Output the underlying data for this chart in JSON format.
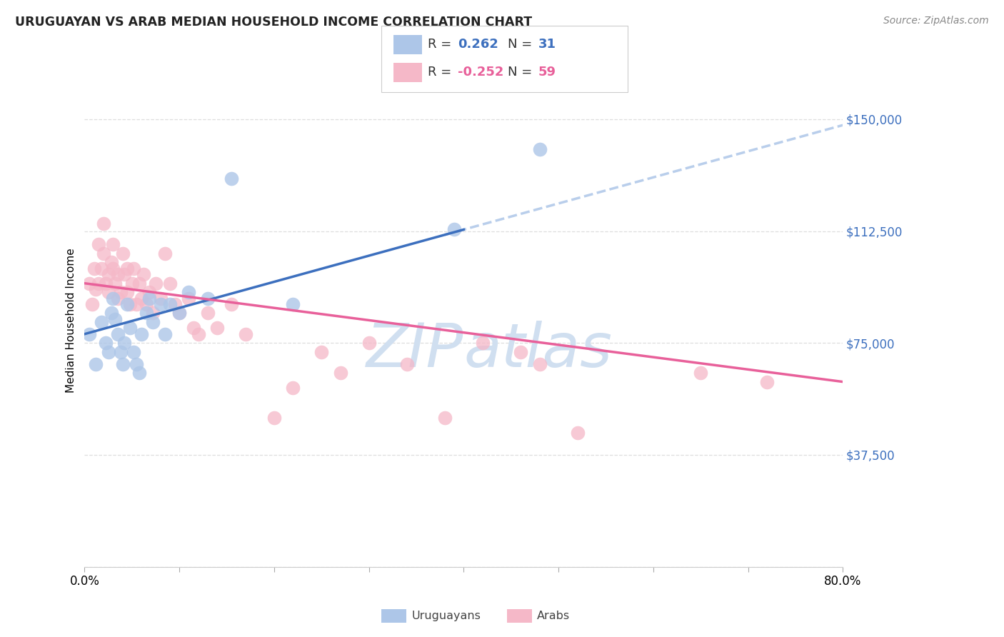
{
  "title": "URUGUAYAN VS ARAB MEDIAN HOUSEHOLD INCOME CORRELATION CHART",
  "source": "Source: ZipAtlas.com",
  "ylabel": "Median Household Income",
  "yticks": [
    0,
    37500,
    75000,
    112500,
    150000
  ],
  "ytick_labels": [
    "",
    "$37,500",
    "$75,000",
    "$112,500",
    "$150,000"
  ],
  "ymax": 165000,
  "ymin": 15000,
  "xmin": 0.0,
  "xmax": 0.8,
  "xtick_left": "0.0%",
  "xtick_right": "80.0%",
  "legend_r_uruguayan": "0.262",
  "legend_n_uruguayan": "31",
  "legend_r_arab": "-0.252",
  "legend_n_arab": "59",
  "uruguayan_color": "#adc6e8",
  "arab_color": "#f5b8c8",
  "uruguayan_line_color": "#3c6fbe",
  "arab_line_color": "#e8609a",
  "dashed_line_color": "#adc6e8",
  "watermark_color": "#d0dff0",
  "background_color": "#ffffff",
  "grid_color": "#dedede",
  "uruguayan_x": [
    0.005,
    0.012,
    0.018,
    0.022,
    0.025,
    0.028,
    0.03,
    0.032,
    0.035,
    0.038,
    0.04,
    0.042,
    0.045,
    0.048,
    0.052,
    0.055,
    0.058,
    0.06,
    0.065,
    0.068,
    0.072,
    0.08,
    0.085,
    0.09,
    0.1,
    0.11,
    0.13,
    0.155,
    0.22,
    0.39,
    0.48
  ],
  "uruguayan_y": [
    78000,
    68000,
    82000,
    75000,
    72000,
    85000,
    90000,
    83000,
    78000,
    72000,
    68000,
    75000,
    88000,
    80000,
    72000,
    68000,
    65000,
    78000,
    85000,
    90000,
    82000,
    88000,
    78000,
    88000,
    85000,
    92000,
    90000,
    130000,
    88000,
    113000,
    140000
  ],
  "arab_x": [
    0.005,
    0.008,
    0.01,
    0.012,
    0.015,
    0.015,
    0.018,
    0.02,
    0.02,
    0.022,
    0.025,
    0.025,
    0.028,
    0.03,
    0.03,
    0.032,
    0.035,
    0.035,
    0.038,
    0.04,
    0.042,
    0.045,
    0.045,
    0.048,
    0.05,
    0.052,
    0.055,
    0.058,
    0.06,
    0.062,
    0.065,
    0.068,
    0.072,
    0.075,
    0.08,
    0.085,
    0.09,
    0.095,
    0.1,
    0.11,
    0.115,
    0.12,
    0.13,
    0.14,
    0.155,
    0.17,
    0.2,
    0.22,
    0.25,
    0.27,
    0.3,
    0.34,
    0.38,
    0.42,
    0.46,
    0.48,
    0.52,
    0.65,
    0.72
  ],
  "arab_y": [
    95000,
    88000,
    100000,
    93000,
    108000,
    95000,
    100000,
    115000,
    105000,
    95000,
    92000,
    98000,
    102000,
    108000,
    100000,
    95000,
    98000,
    90000,
    92000,
    105000,
    98000,
    100000,
    92000,
    88000,
    95000,
    100000,
    88000,
    95000,
    90000,
    98000,
    88000,
    92000,
    85000,
    95000,
    90000,
    105000,
    95000,
    88000,
    85000,
    90000,
    80000,
    78000,
    85000,
    80000,
    88000,
    78000,
    50000,
    60000,
    72000,
    65000,
    75000,
    68000,
    50000,
    75000,
    72000,
    68000,
    45000,
    65000,
    62000
  ]
}
